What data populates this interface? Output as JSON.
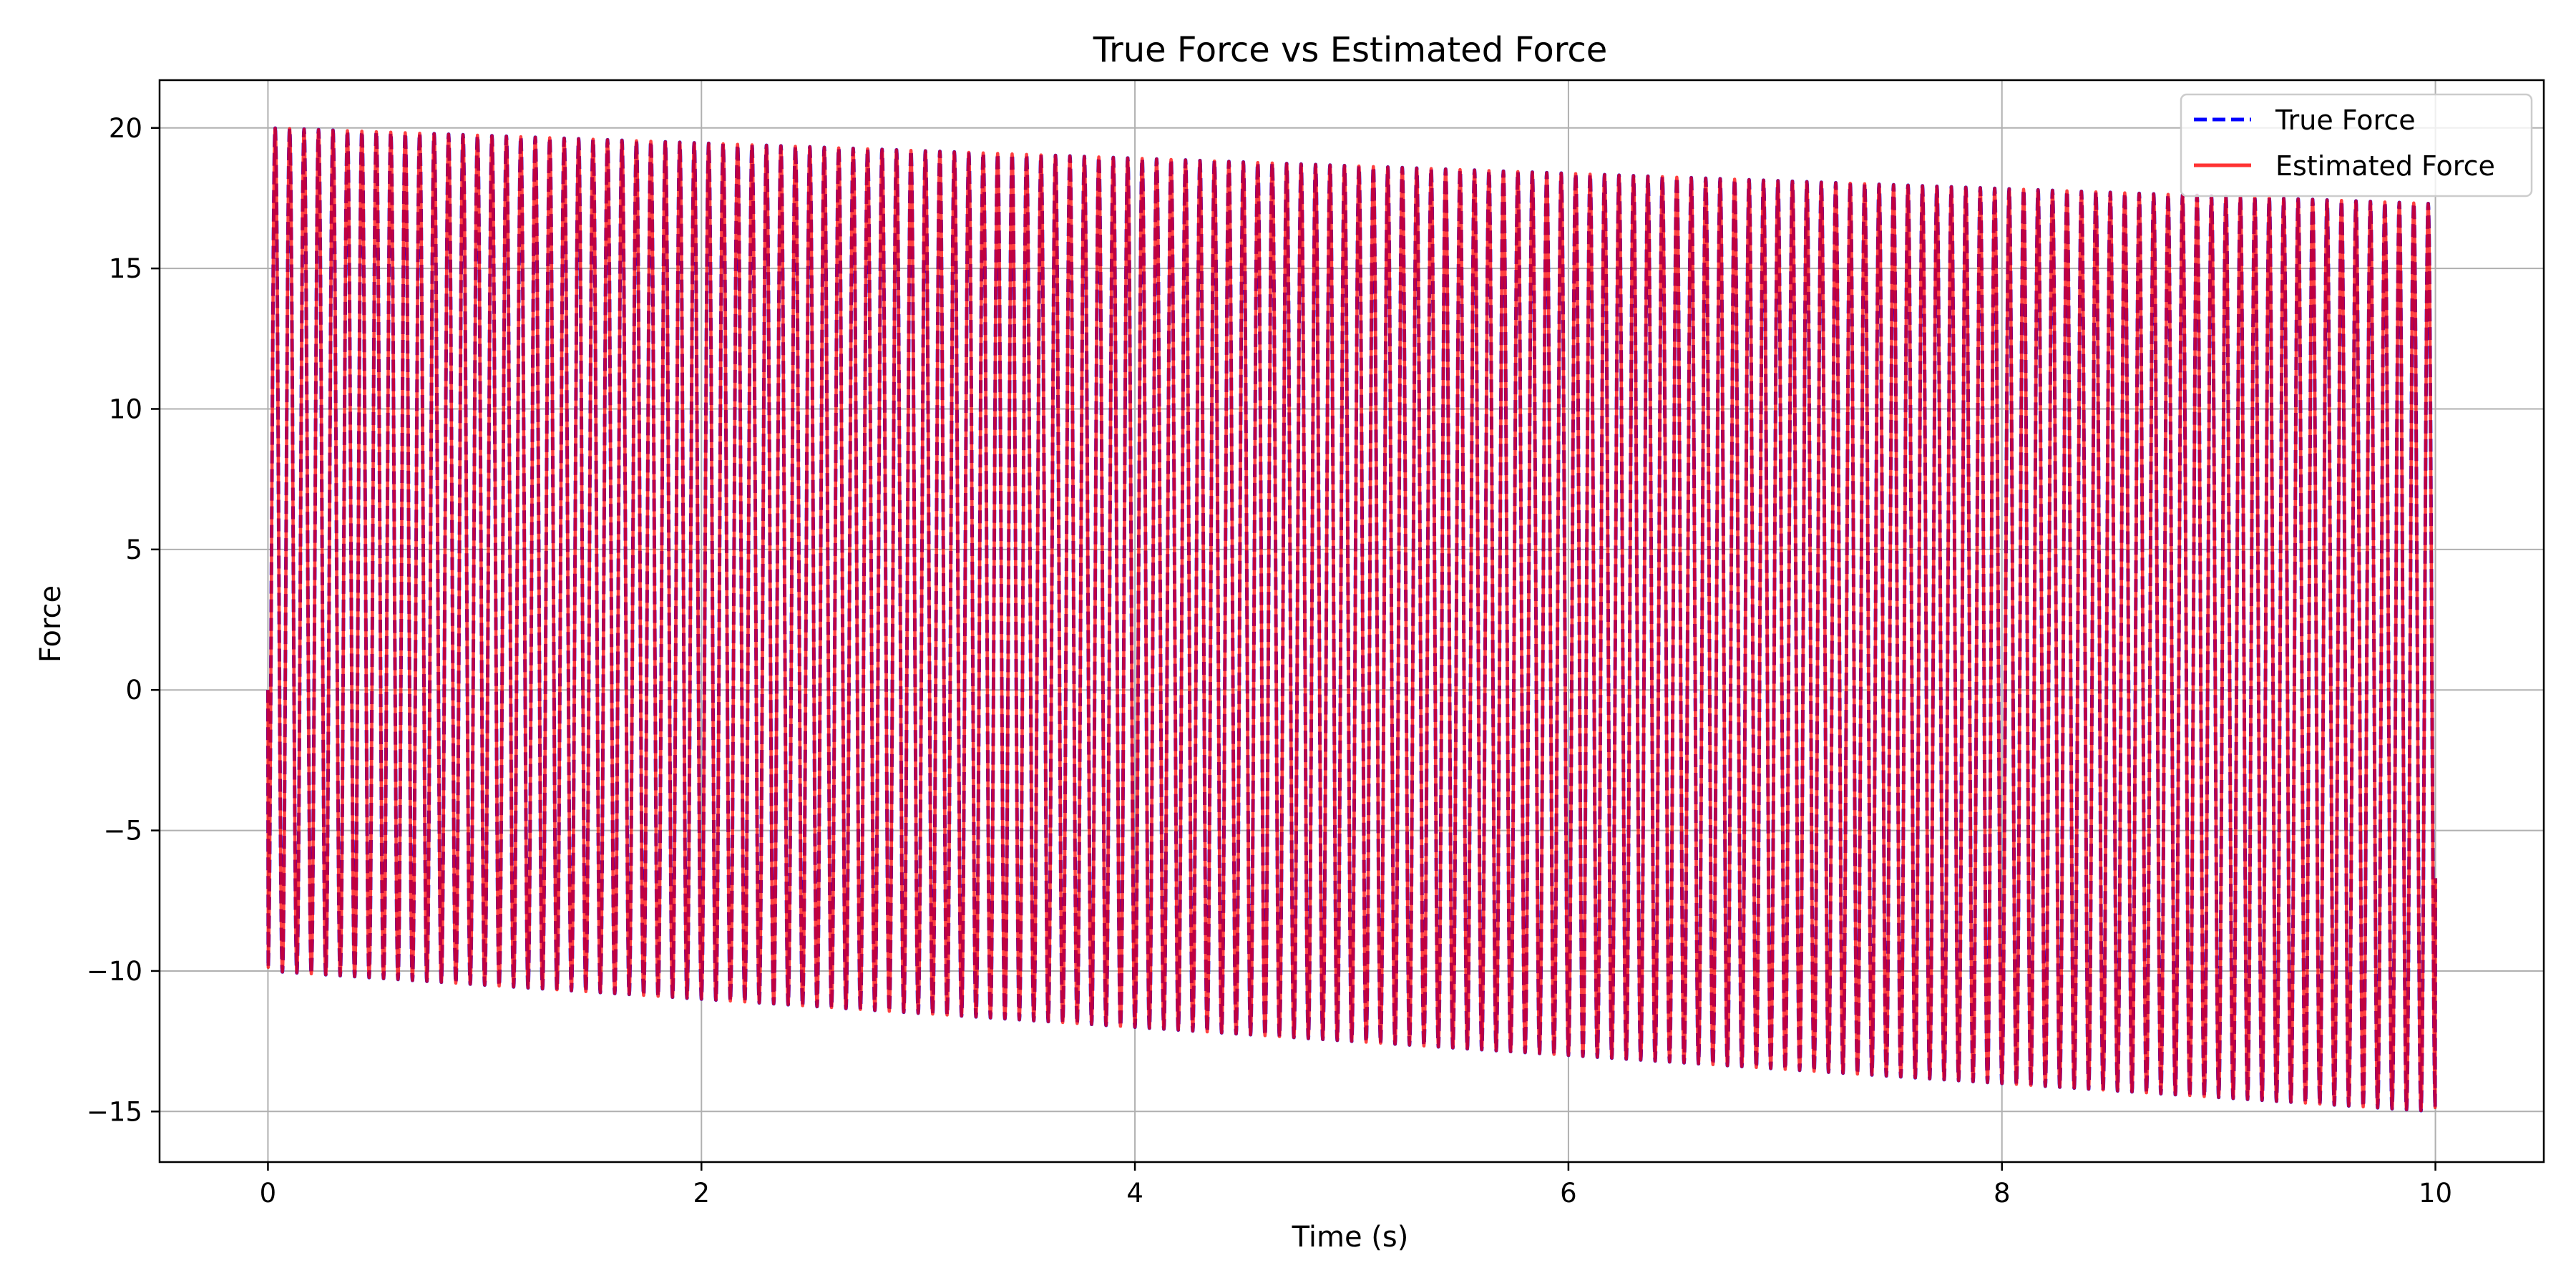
{
  "chart_data": {
    "type": "line",
    "title": "True Force vs Estimated Force",
    "xlabel": "Time (s)",
    "ylabel": "Force",
    "xlim": [
      -0.5,
      10.5
    ],
    "ylim": [
      -16.8,
      21.7
    ],
    "xticks": [
      0,
      2,
      4,
      6,
      8,
      10
    ],
    "xtick_labels": [
      "0",
      "2",
      "4",
      "6",
      "8",
      "10"
    ],
    "yticks": [
      -15,
      -10,
      -5,
      0,
      5,
      10,
      15,
      20
    ],
    "ytick_labels": [
      "−15",
      "−10",
      "−5",
      "0",
      "5",
      "10",
      "15",
      "20"
    ],
    "grid": true,
    "legend_position": "top-right",
    "series": [
      {
        "name": "True Force",
        "color": "#0000ff",
        "style": "dashed",
        "waveform": {
          "x_start": 0,
          "x_end": 10,
          "cycles": 150,
          "start_value": 0,
          "end_value": -6.7,
          "peak_start": 20.0,
          "peak_end": 17.3,
          "trough_start": -10.0,
          "trough_end": -15.0
        }
      },
      {
        "name": "Estimated Force",
        "color": "#ff0000",
        "style": "solid",
        "waveform": {
          "x_start": 0,
          "x_end": 10,
          "cycles": 150,
          "start_value": 0,
          "end_value": -6.7,
          "peak_start": 20.0,
          "peak_end": 17.3,
          "trough_start": -10.0,
          "trough_end": -15.0
        }
      }
    ]
  }
}
